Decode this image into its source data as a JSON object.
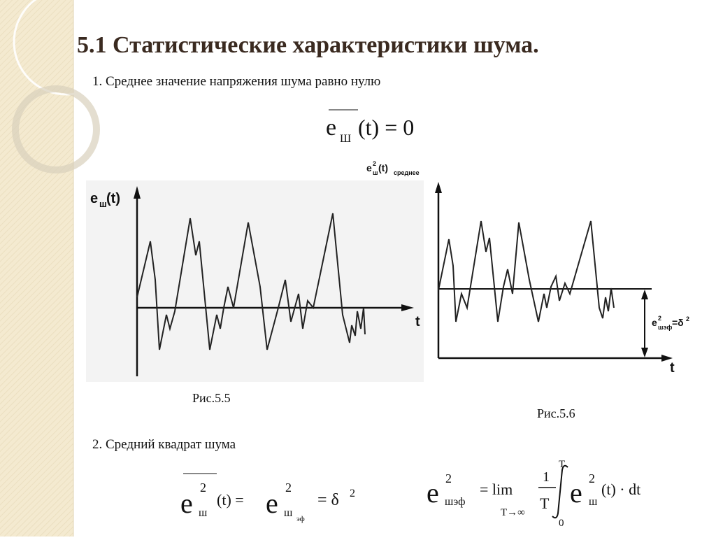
{
  "header": {
    "title": "5.1 Статистические характеристики шума."
  },
  "items": [
    "1. Среднее значение напряжения шума равно нулю",
    "2. Средний квадрат шума"
  ],
  "formula1": {
    "e": "e",
    "sub": "Ш",
    "rest": "(t) = 0"
  },
  "figure1": {
    "ylabel": {
      "e": "e",
      "sub": "ш",
      "rest": "(t)"
    },
    "xlabel": "t",
    "caption": "Рис.5.5"
  },
  "figure2": {
    "ylabel": {
      "e": "e",
      "sup": "2",
      "sub": "ш",
      "rest": "(t)",
      "sub2": "среднее"
    },
    "annotation": {
      "e": "e",
      "sup": "2",
      "sub": "шэф",
      "rest": "=δ",
      "sup2": "2"
    },
    "xlabel": "t",
    "caption": "Рис.5.6"
  },
  "formula2": {
    "e1": "e",
    "sup1": "2",
    "sub1": "ш",
    "mid": "(t) =",
    "e2": "e",
    "sup2": "2",
    "sub2": "ш",
    "subsub2": "эф",
    "rest": "= δ",
    "sup3": "2"
  },
  "formula3": {
    "e1": "e",
    "sup1": "2",
    "sub1": "шэф",
    "eq": "= lim",
    "limsub": "T→∞",
    "num": "1",
    "den": "T",
    "upper": "T",
    "lower": "0",
    "e2": "e",
    "sup2": "2",
    "sub2": "ш",
    "rest": "(t) · dt"
  }
}
